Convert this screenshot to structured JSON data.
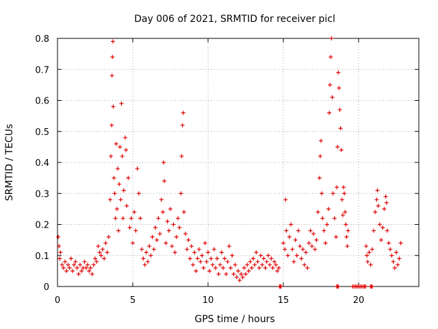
{
  "chart_data": {
    "type": "scatter",
    "title": "Day 006 of 2021, SRMTID for receiver picl",
    "xlabel": "GPS time / hours",
    "ylabel": "SRMTID / TECUs",
    "xlim": [
      0,
      24
    ],
    "ylim": [
      0,
      0.8
    ],
    "grid": true,
    "marker": "+",
    "x_ticks": [
      0,
      5,
      10,
      15,
      20
    ],
    "x_tick_labels": [
      "0",
      "5",
      "10",
      "15",
      "20"
    ],
    "y_ticks": [
      0,
      0.1,
      0.2,
      0.3,
      0.4,
      0.5,
      0.6,
      0.7,
      0.8
    ],
    "y_tick_labels": [
      "0",
      "0.1",
      "0.2",
      "0.3",
      "0.4",
      "0.5",
      "0.6",
      "0.7",
      "0.8"
    ],
    "series": [
      {
        "name": "SRMTID",
        "color": "#e00000",
        "points": [
          [
            0.05,
            0.16
          ],
          [
            0.1,
            0.13
          ],
          [
            0.15,
            0.09
          ],
          [
            0.2,
            0.11
          ],
          [
            0.3,
            0.07
          ],
          [
            0.4,
            0.06
          ],
          [
            0.5,
            0.08
          ],
          [
            0.6,
            0.05
          ],
          [
            0.7,
            0.07
          ],
          [
            0.8,
            0.06
          ],
          [
            0.9,
            0.09
          ],
          [
            1.0,
            0.05
          ],
          [
            1.1,
            0.07
          ],
          [
            1.2,
            0.08
          ],
          [
            1.3,
            0.06
          ],
          [
            1.4,
            0.04
          ],
          [
            1.5,
            0.07
          ],
          [
            1.6,
            0.05
          ],
          [
            1.7,
            0.06
          ],
          [
            1.8,
            0.08
          ],
          [
            1.9,
            0.06
          ],
          [
            2.0,
            0.07
          ],
          [
            2.1,
            0.05
          ],
          [
            2.2,
            0.06
          ],
          [
            2.3,
            0.04
          ],
          [
            2.4,
            0.07
          ],
          [
            2.5,
            0.09
          ],
          [
            2.6,
            0.08
          ],
          [
            2.7,
            0.13
          ],
          [
            2.8,
            0.11
          ],
          [
            2.9,
            0.1
          ],
          [
            3.0,
            0.12
          ],
          [
            3.1,
            0.09
          ],
          [
            3.2,
            0.14
          ],
          [
            3.3,
            0.11
          ],
          [
            3.4,
            0.16
          ],
          [
            3.5,
            0.28
          ],
          [
            3.55,
            0.42
          ],
          [
            3.6,
            0.52
          ],
          [
            3.62,
            0.68
          ],
          [
            3.65,
            0.74
          ],
          [
            3.68,
            0.79
          ],
          [
            3.7,
            0.58
          ],
          [
            3.75,
            0.35
          ],
          [
            3.8,
            0.3
          ],
          [
            3.85,
            0.22
          ],
          [
            3.9,
            0.46
          ],
          [
            3.95,
            0.25
          ],
          [
            4.0,
            0.38
          ],
          [
            4.05,
            0.18
          ],
          [
            4.1,
            0.33
          ],
          [
            4.15,
            0.45
          ],
          [
            4.2,
            0.28
          ],
          [
            4.25,
            0.59
          ],
          [
            4.3,
            0.42
          ],
          [
            4.35,
            0.22
          ],
          [
            4.4,
            0.31
          ],
          [
            4.5,
            0.48
          ],
          [
            4.55,
            0.44
          ],
          [
            4.6,
            0.26
          ],
          [
            4.7,
            0.35
          ],
          [
            4.8,
            0.19
          ],
          [
            4.9,
            0.22
          ],
          [
            5.0,
            0.14
          ],
          [
            5.1,
            0.24
          ],
          [
            5.2,
            0.18
          ],
          [
            5.3,
            0.38
          ],
          [
            5.4,
            0.3
          ],
          [
            5.5,
            0.22
          ],
          [
            5.6,
            0.12
          ],
          [
            5.7,
            0.09
          ],
          [
            5.8,
            0.07
          ],
          [
            5.9,
            0.11
          ],
          [
            6.0,
            0.08
          ],
          [
            6.1,
            0.13
          ],
          [
            6.2,
            0.1
          ],
          [
            6.3,
            0.16
          ],
          [
            6.4,
            0.12
          ],
          [
            6.5,
            0.19
          ],
          [
            6.6,
            0.15
          ],
          [
            6.7,
            0.22
          ],
          [
            6.8,
            0.17
          ],
          [
            6.9,
            0.28
          ],
          [
            7.0,
            0.24
          ],
          [
            7.05,
            0.4
          ],
          [
            7.1,
            0.34
          ],
          [
            7.2,
            0.14
          ],
          [
            7.3,
            0.21
          ],
          [
            7.4,
            0.18
          ],
          [
            7.5,
            0.25
          ],
          [
            7.6,
            0.13
          ],
          [
            7.7,
            0.2
          ],
          [
            7.8,
            0.11
          ],
          [
            7.9,
            0.16
          ],
          [
            8.0,
            0.22
          ],
          [
            8.1,
            0.19
          ],
          [
            8.2,
            0.3
          ],
          [
            8.25,
            0.42
          ],
          [
            8.3,
            0.52
          ],
          [
            8.35,
            0.56
          ],
          [
            8.4,
            0.24
          ],
          [
            8.5,
            0.17
          ],
          [
            8.6,
            0.12
          ],
          [
            8.7,
            0.15
          ],
          [
            8.8,
            0.09
          ],
          [
            8.9,
            0.13
          ],
          [
            9.0,
            0.07
          ],
          [
            9.1,
            0.11
          ],
          [
            9.2,
            0.05
          ],
          [
            9.3,
            0.09
          ],
          [
            9.4,
            0.12
          ],
          [
            9.5,
            0.08
          ],
          [
            9.6,
            0.1
          ],
          [
            9.7,
            0.06
          ],
          [
            9.8,
            0.14
          ],
          [
            9.9,
            0.08
          ],
          [
            10.0,
            0.11
          ],
          [
            10.1,
            0.05
          ],
          [
            10.2,
            0.09
          ],
          [
            10.3,
            0.07
          ],
          [
            10.4,
            0.12
          ],
          [
            10.5,
            0.06
          ],
          [
            10.6,
            0.09
          ],
          [
            10.7,
            0.04
          ],
          [
            10.8,
            0.07
          ],
          [
            10.9,
            0.11
          ],
          [
            11.0,
            0.06
          ],
          [
            11.1,
            0.09
          ],
          [
            11.2,
            0.04
          ],
          [
            11.3,
            0.08
          ],
          [
            11.4,
            0.13
          ],
          [
            11.5,
            0.06
          ],
          [
            11.6,
            0.1
          ],
          [
            11.7,
            0.04
          ],
          [
            11.8,
            0.07
          ],
          [
            11.9,
            0.03
          ],
          [
            12.0,
            0.05
          ],
          [
            12.1,
            0.02
          ],
          [
            12.2,
            0.04
          ],
          [
            12.3,
            0.03
          ],
          [
            12.4,
            0.06
          ],
          [
            12.5,
            0.04
          ],
          [
            12.6,
            0.07
          ],
          [
            12.7,
            0.05
          ],
          [
            12.8,
            0.08
          ],
          [
            12.9,
            0.06
          ],
          [
            13.0,
            0.09
          ],
          [
            13.1,
            0.07
          ],
          [
            13.2,
            0.11
          ],
          [
            13.3,
            0.08
          ],
          [
            13.4,
            0.06
          ],
          [
            13.5,
            0.1
          ],
          [
            13.6,
            0.07
          ],
          [
            13.7,
            0.09
          ],
          [
            13.8,
            0.06
          ],
          [
            13.9,
            0.08
          ],
          [
            14.0,
            0.1
          ],
          [
            14.1,
            0.07
          ],
          [
            14.2,
            0.09
          ],
          [
            14.3,
            0.06
          ],
          [
            14.4,
            0.08
          ],
          [
            14.5,
            0.07
          ],
          [
            14.6,
            0.05
          ],
          [
            14.7,
            0.06
          ],
          [
            15.0,
            0.14
          ],
          [
            15.1,
            0.12
          ],
          [
            15.15,
            0.28
          ],
          [
            15.2,
            0.18
          ],
          [
            15.3,
            0.1
          ],
          [
            15.4,
            0.16
          ],
          [
            15.5,
            0.2
          ],
          [
            15.6,
            0.12
          ],
          [
            15.7,
            0.08
          ],
          [
            15.8,
            0.15
          ],
          [
            15.9,
            0.1
          ],
          [
            16.0,
            0.18
          ],
          [
            16.1,
            0.13
          ],
          [
            16.2,
            0.09
          ],
          [
            16.3,
            0.12
          ],
          [
            16.4,
            0.07
          ],
          [
            16.5,
            0.11
          ],
          [
            16.6,
            0.06
          ],
          [
            16.7,
            0.14
          ],
          [
            16.8,
            0.18
          ],
          [
            16.9,
            0.13
          ],
          [
            17.0,
            0.17
          ],
          [
            17.1,
            0.12
          ],
          [
            17.2,
            0.15
          ],
          [
            17.3,
            0.24
          ],
          [
            17.4,
            0.35
          ],
          [
            17.45,
            0.42
          ],
          [
            17.5,
            0.47
          ],
          [
            17.55,
            0.3
          ],
          [
            17.6,
            0.22
          ],
          [
            17.7,
            0.18
          ],
          [
            17.8,
            0.14
          ],
          [
            17.9,
            0.2
          ],
          [
            18.0,
            0.25
          ],
          [
            18.05,
            0.56
          ],
          [
            18.1,
            0.65
          ],
          [
            18.15,
            0.74
          ],
          [
            18.2,
            0.8
          ],
          [
            18.25,
            0.61
          ],
          [
            18.3,
            0.3
          ],
          [
            18.4,
            0.22
          ],
          [
            18.5,
            0.16
          ],
          [
            18.55,
            0.32
          ],
          [
            18.6,
            0.45
          ],
          [
            18.65,
            0.69
          ],
          [
            18.7,
            0.64
          ],
          [
            18.75,
            0.57
          ],
          [
            18.8,
            0.51
          ],
          [
            18.85,
            0.44
          ],
          [
            18.9,
            0.28
          ],
          [
            18.95,
            0.23
          ],
          [
            19.0,
            0.32
          ],
          [
            19.05,
            0.3
          ],
          [
            19.1,
            0.24
          ],
          [
            19.15,
            0.2
          ],
          [
            19.2,
            0.16
          ],
          [
            19.25,
            0.13
          ],
          [
            19.3,
            0.18
          ],
          [
            20.5,
            0.13
          ],
          [
            20.55,
            0.1
          ],
          [
            20.6,
            0.08
          ],
          [
            20.7,
            0.11
          ],
          [
            20.8,
            0.07
          ],
          [
            20.9,
            0.12
          ],
          [
            21.0,
            0.18
          ],
          [
            21.1,
            0.24
          ],
          [
            21.2,
            0.28
          ],
          [
            21.25,
            0.31
          ],
          [
            21.3,
            0.26
          ],
          [
            21.4,
            0.2
          ],
          [
            21.5,
            0.15
          ],
          [
            21.6,
            0.19
          ],
          [
            21.7,
            0.25
          ],
          [
            21.8,
            0.29
          ],
          [
            21.85,
            0.27
          ],
          [
            21.9,
            0.18
          ],
          [
            22.0,
            0.14
          ],
          [
            22.1,
            0.12
          ],
          [
            22.2,
            0.1
          ],
          [
            22.3,
            0.08
          ],
          [
            22.4,
            0.06
          ],
          [
            22.5,
            0.11
          ],
          [
            22.6,
            0.07
          ],
          [
            22.7,
            0.09
          ],
          [
            22.8,
            0.14
          ],
          [
            14.75,
            0.0
          ],
          [
            14.8,
            0.0
          ],
          [
            14.85,
            0.0
          ],
          [
            18.55,
            0.0
          ],
          [
            18.6,
            0.0
          ],
          [
            18.65,
            0.0
          ],
          [
            19.6,
            0.0
          ],
          [
            19.7,
            0.0
          ],
          [
            19.8,
            0.0
          ],
          [
            19.9,
            0.0
          ],
          [
            20.0,
            0.0
          ],
          [
            20.1,
            0.0
          ],
          [
            20.2,
            0.0
          ],
          [
            20.3,
            0.0
          ],
          [
            20.4,
            0.0
          ],
          [
            20.45,
            0.0
          ],
          [
            20.8,
            0.0
          ],
          [
            20.85,
            0.0
          ],
          [
            20.9,
            0.0
          ]
        ]
      }
    ]
  }
}
